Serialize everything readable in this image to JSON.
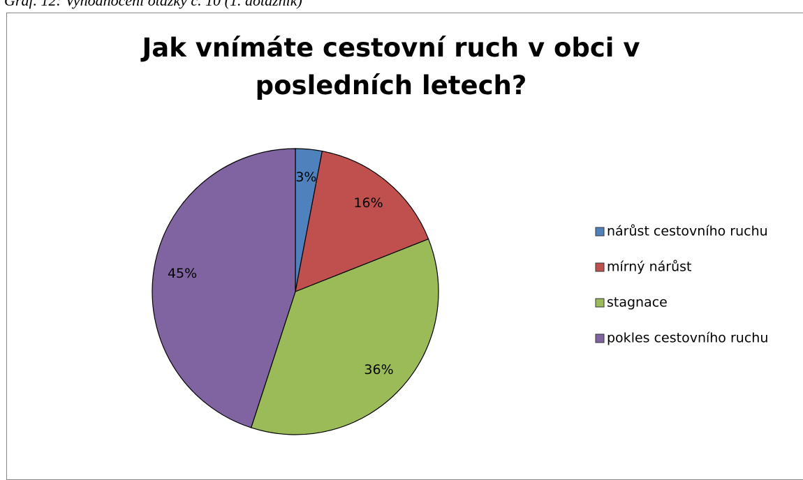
{
  "caption": "Graf. 12: Vyhodnocení otázky č. 10 (1. dotazník)",
  "chart_data": {
    "type": "pie",
    "title": "Jak vnímáte cestovní ruch v obci v posledních letech?",
    "categories": [
      "nárůst cestovního ruchu",
      "mírný nárůst",
      "stagnace",
      "pokles cestovního ruchu"
    ],
    "values": [
      3,
      16,
      36,
      45
    ],
    "value_labels": [
      "3%",
      "16%",
      "36%",
      "45%"
    ],
    "colors": [
      "#4f81bd",
      "#c0504d",
      "#9bbb59",
      "#8064a2"
    ],
    "legend": "right"
  }
}
